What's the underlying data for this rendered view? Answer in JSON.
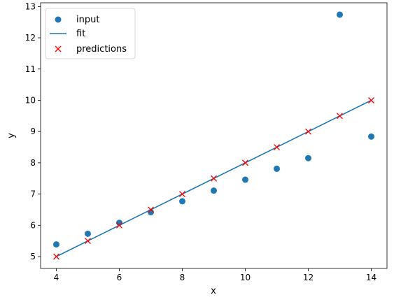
{
  "chart_data": {
    "type": "scatter",
    "title": "",
    "xlabel": "x",
    "ylabel": "y",
    "xlim": [
      3.5,
      14.5
    ],
    "ylim": [
      4.62,
      13.12
    ],
    "xticks": [
      4,
      6,
      8,
      10,
      12,
      14
    ],
    "yticks": [
      5,
      6,
      7,
      8,
      9,
      10,
      11,
      12,
      13
    ],
    "grid": false,
    "legend_position": "upper-left",
    "colors": {
      "input": "#1f77b4",
      "fit": "#1f77b4",
      "predictions": "#ff0000"
    },
    "series": [
      {
        "name": "input",
        "kind": "scatter-circle",
        "x": [
          4,
          5,
          6,
          7,
          8,
          9,
          10,
          11,
          12,
          13,
          14
        ],
        "y": [
          5.39,
          5.73,
          6.08,
          6.42,
          6.77,
          7.11,
          7.46,
          7.81,
          8.15,
          12.74,
          8.84
        ]
      },
      {
        "name": "fit",
        "kind": "line",
        "x": [
          4,
          14
        ],
        "y": [
          5.0,
          10.0
        ]
      },
      {
        "name": "predictions",
        "kind": "scatter-x",
        "x": [
          4,
          5,
          6,
          7,
          8,
          9,
          10,
          11,
          12,
          13,
          14
        ],
        "y": [
          5.0,
          5.5,
          6.0,
          6.5,
          7.0,
          7.5,
          8.0,
          8.5,
          9.0,
          9.5,
          10.0
        ]
      }
    ]
  }
}
